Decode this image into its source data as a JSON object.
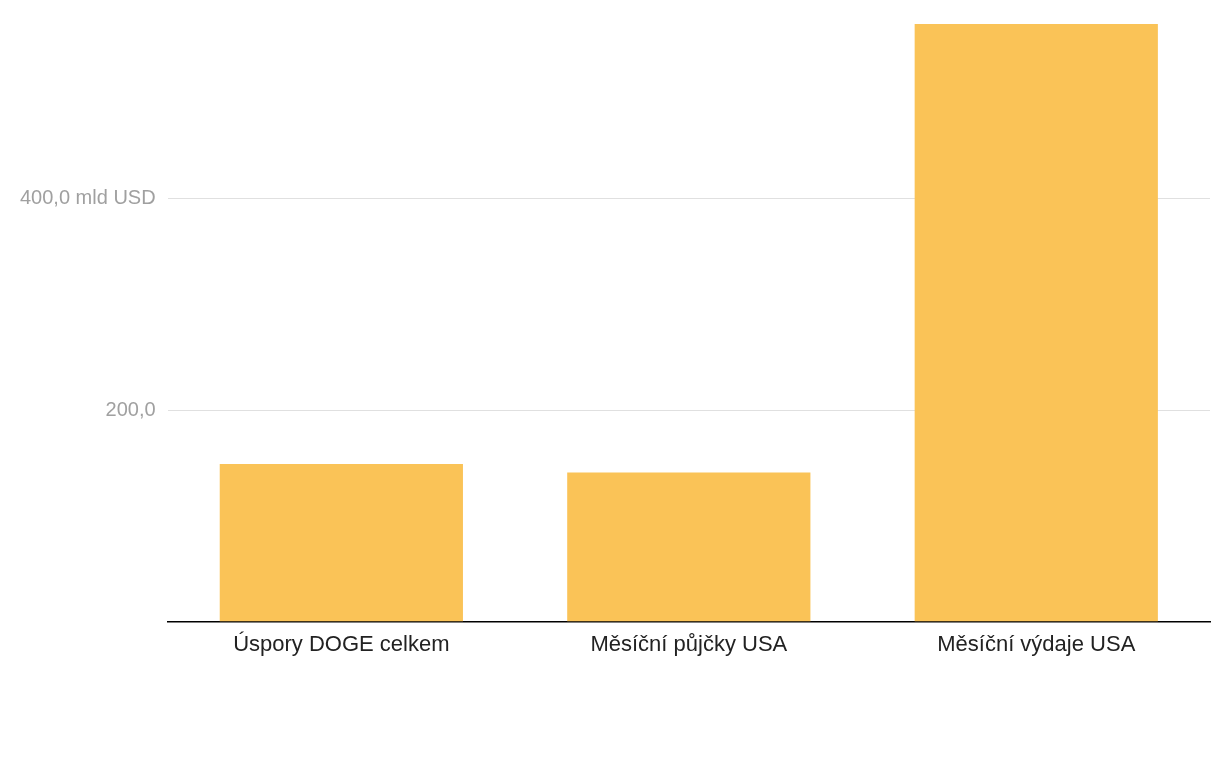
{
  "chart_data": {
    "type": "bar",
    "categories": [
      "Úspory DOGE celkem",
      "Měsíční půjčky USA",
      "Měsíční výdaje USA"
    ],
    "values": [
      149,
      141,
      565
    ],
    "color": "#fac357",
    "ylim": [
      0,
      565
    ],
    "yticks": [
      {
        "value": 200,
        "label": "200,0"
      },
      {
        "value": 400,
        "label": "400,0 mld USD"
      }
    ],
    "grid": "y"
  }
}
